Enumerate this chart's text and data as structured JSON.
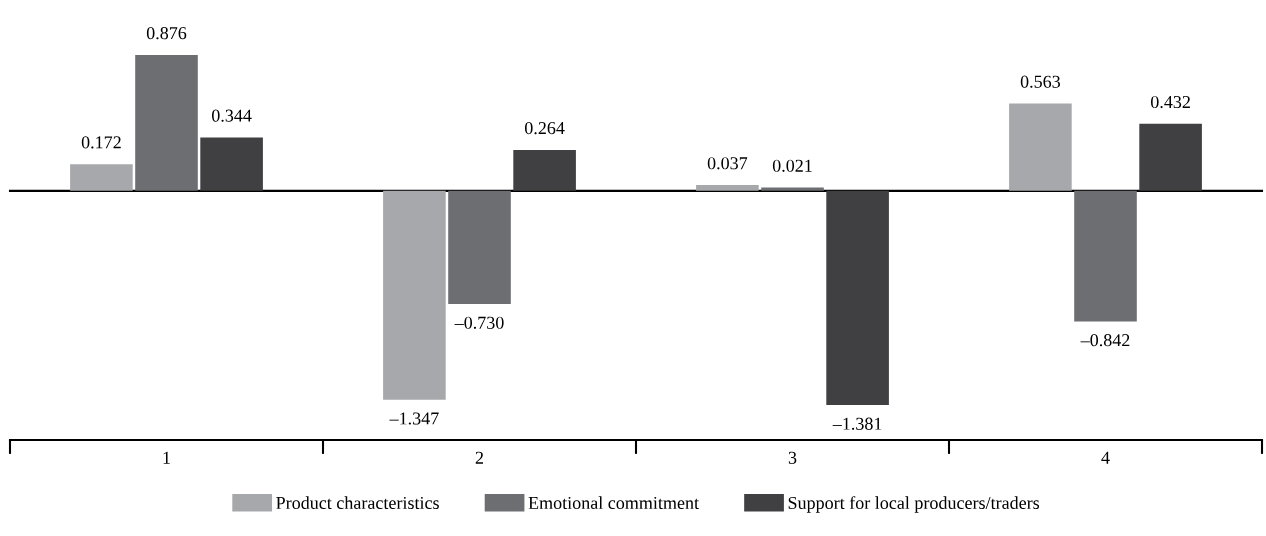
{
  "chart_data": {
    "type": "bar",
    "categories": [
      "1",
      "2",
      "3",
      "4"
    ],
    "legend": "bottom",
    "series": [
      {
        "name": "Product characteristics",
        "color": "#a7a8ab",
        "values": [
          0.172,
          -1.347,
          0.037,
          0.563
        ],
        "value_labels": [
          "0.172",
          "–1.347",
          "0.037",
          "0.563"
        ]
      },
      {
        "name": "Emotional commitment",
        "color": "#6d6e71",
        "values": [
          0.876,
          -0.73,
          0.021,
          -0.842
        ],
        "value_labels": [
          "0.876",
          "–0.730",
          "0.021",
          "–0.842"
        ]
      },
      {
        "name": "Support for local producers/traders",
        "color": "#404042",
        "values": [
          0.344,
          0.264,
          -1.381,
          0.432
        ],
        "value_labels": [
          "0.344",
          "0.264",
          "–1.381",
          "0.432"
        ]
      }
    ]
  }
}
